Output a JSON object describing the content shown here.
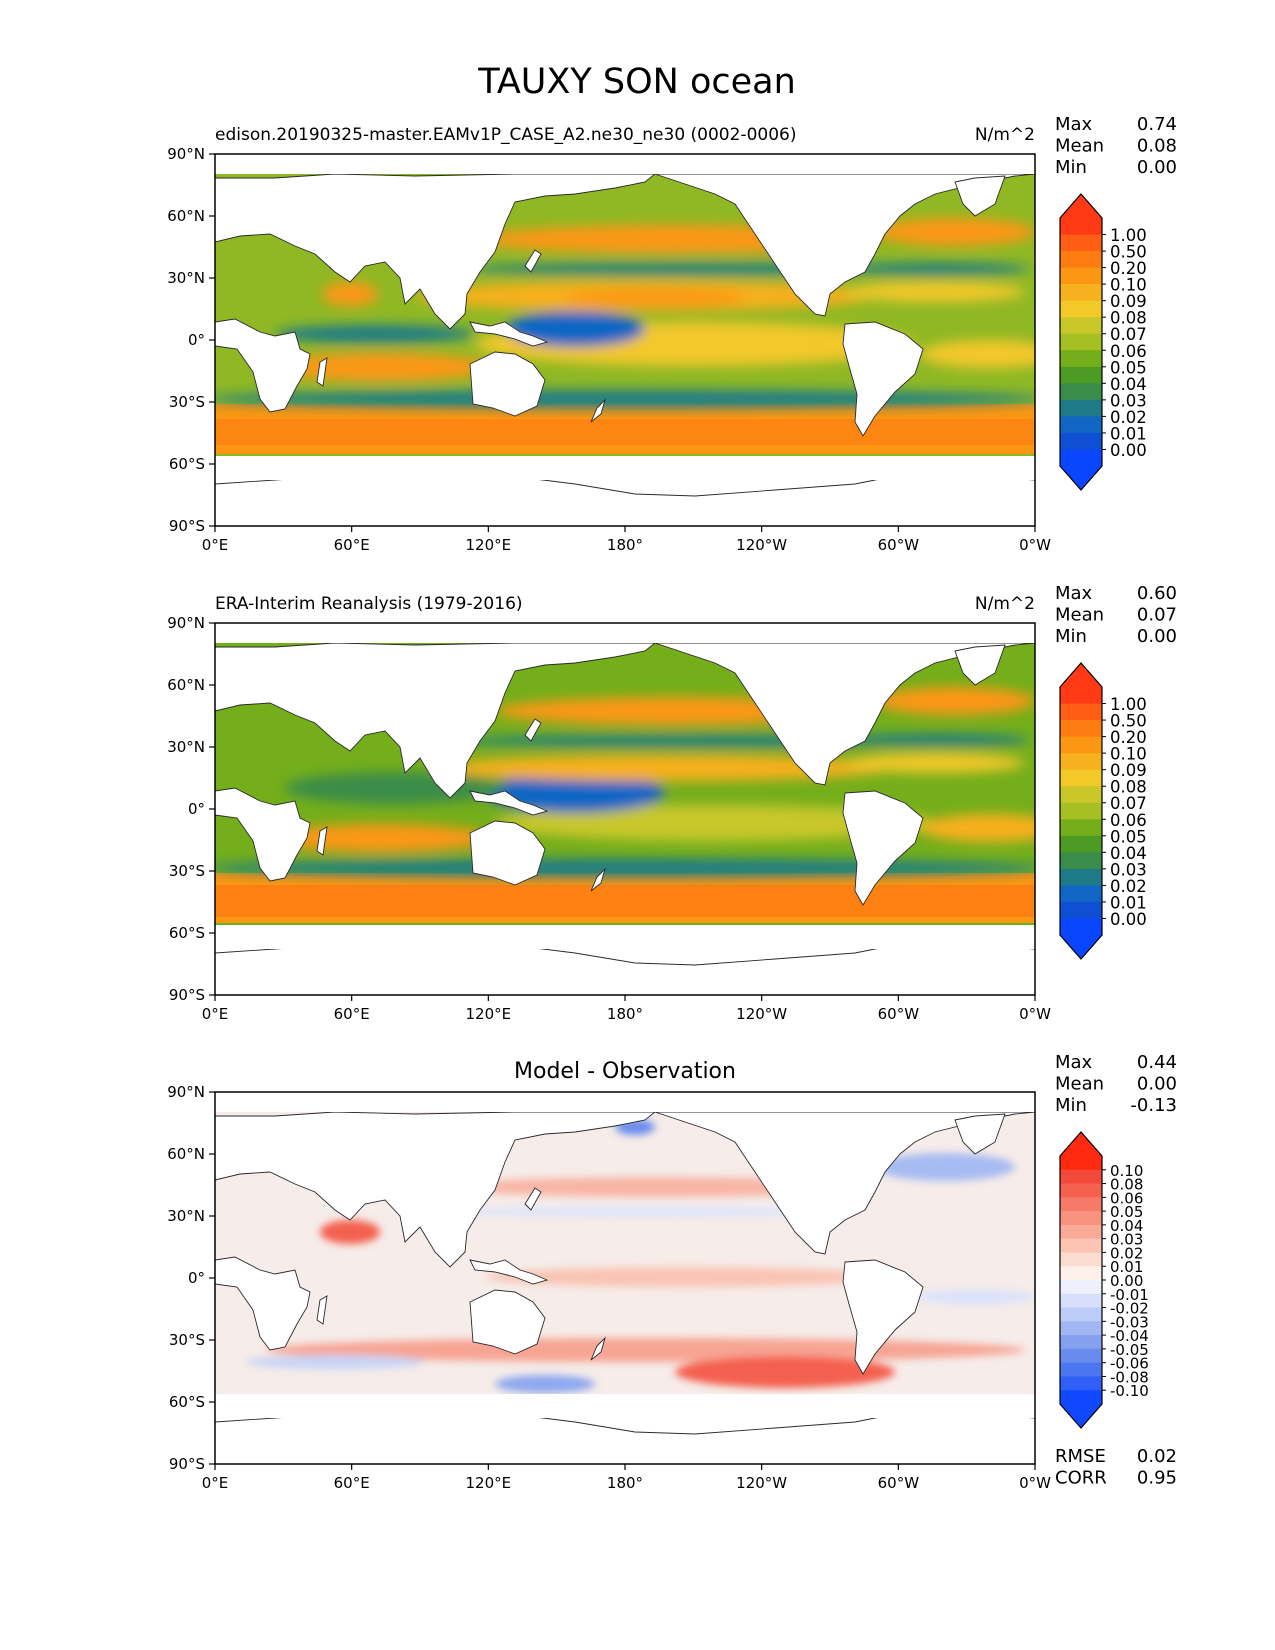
{
  "figure_title": "TAUXY SON ocean",
  "chart_data": [
    {
      "type": "heatmap",
      "id": "test",
      "title": "edison.20190325-master.EAMv1P_CASE_A2.ne30_ne30 (0002-0006)",
      "units": "N/m^2",
      "stats": [
        {
          "label": "Max",
          "value": "0.74"
        },
        {
          "label": "Mean",
          "value": "0.08"
        },
        {
          "label": "Min",
          "value": "0.00"
        }
      ],
      "xticks": [
        "0°E",
        "60°E",
        "120°E",
        "180°",
        "120°W",
        "60°W",
        "0°W"
      ],
      "yticks": [
        "90°N",
        "60°N",
        "30°N",
        "0°",
        "30°S",
        "60°S",
        "90°S"
      ],
      "colorbar": {
        "levels": [
          "1.00",
          "0.50",
          "0.20",
          "0.10",
          "0.09",
          "0.08",
          "0.07",
          "0.06",
          "0.05",
          "0.04",
          "0.03",
          "0.02",
          "0.01",
          "0.00"
        ],
        "colors": [
          "#ff3a14",
          "#ff5e14",
          "#fd7c12",
          "#fb9712",
          "#f7b01e",
          "#f3c829",
          "#c9c72a",
          "#a6bf22",
          "#74ae1b",
          "#4b9b24",
          "#3a8c4a",
          "#1f7a88",
          "#1166c4",
          "#0f4fd4",
          "#0a46ff"
        ]
      }
    },
    {
      "type": "heatmap",
      "id": "reference",
      "title": "ERA-Interim Reanalysis (1979-2016)",
      "units": "N/m^2",
      "stats": [
        {
          "label": "Max",
          "value": "0.60"
        },
        {
          "label": "Mean",
          "value": "0.07"
        },
        {
          "label": "Min",
          "value": "0.00"
        }
      ],
      "xticks": [
        "0°E",
        "60°E",
        "120°E",
        "180°",
        "120°W",
        "60°W",
        "0°W"
      ],
      "yticks": [
        "90°N",
        "60°N",
        "30°N",
        "0°",
        "30°S",
        "60°S",
        "90°S"
      ],
      "colorbar": {
        "levels": [
          "1.00",
          "0.50",
          "0.20",
          "0.10",
          "0.09",
          "0.08",
          "0.07",
          "0.06",
          "0.05",
          "0.04",
          "0.03",
          "0.02",
          "0.01",
          "0.00"
        ],
        "colors": [
          "#ff3a14",
          "#ff5e14",
          "#fd7c12",
          "#fb9712",
          "#f7b01e",
          "#f3c829",
          "#c9c72a",
          "#a6bf22",
          "#74ae1b",
          "#4b9b24",
          "#3a8c4a",
          "#1f7a88",
          "#1166c4",
          "#0f4fd4",
          "#0a46ff"
        ]
      }
    },
    {
      "type": "heatmap",
      "id": "diff",
      "title": "Model - Observation",
      "units": "",
      "stats": [
        {
          "label": "Max",
          "value": "0.44"
        },
        {
          "label": "Mean",
          "value": "0.00"
        },
        {
          "label": "Min",
          "value": "-0.13"
        }
      ],
      "bottom_stats": [
        {
          "label": "RMSE",
          "value": "0.02"
        },
        {
          "label": "CORR",
          "value": "0.95"
        }
      ],
      "xticks": [
        "0°E",
        "60°E",
        "120°E",
        "180°",
        "120°W",
        "60°W",
        "0°W"
      ],
      "yticks": [
        "90°N",
        "60°N",
        "30°N",
        "0°",
        "30°S",
        "60°S",
        "90°S"
      ],
      "colorbar": {
        "levels": [
          "0.10",
          "0.08",
          "0.06",
          "0.05",
          "0.04",
          "0.03",
          "0.02",
          "0.01",
          "0.00",
          "-0.01",
          "-0.02",
          "-0.03",
          "-0.04",
          "-0.05",
          "-0.06",
          "-0.08",
          "-0.10"
        ],
        "colors": [
          "#ff2a10",
          "#f2493a",
          "#f4614f",
          "#f57a68",
          "#f7937f",
          "#f9ab98",
          "#fbc4b3",
          "#fcdccf",
          "#fdf0ea",
          "#eef1fb",
          "#d7dffa",
          "#bccbf7",
          "#a1b6f3",
          "#85a0ef",
          "#6a8bee",
          "#4c76f0",
          "#2f5ff4",
          "#1048ff"
        ]
      }
    }
  ]
}
